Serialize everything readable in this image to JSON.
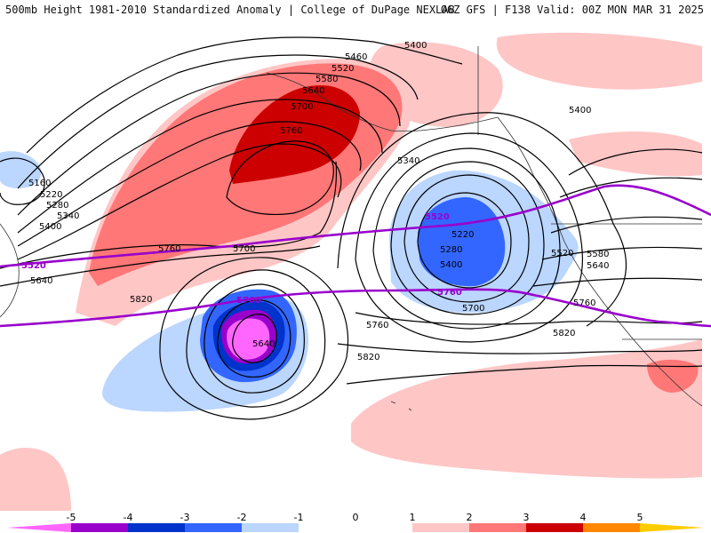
{
  "header": {
    "title_left": "500mb Height 1981-2010 Standardized Anomaly | College of DuPage NEXLAB",
    "title_right": "06Z GFS | F138 Valid: 00Z MON MAR 31 2025"
  },
  "colors": {
    "anom_neg5": "#ff66ff",
    "anom_neg4": "#9900cc",
    "anom_neg3": "#0033cc",
    "anom_neg2": "#3366ff",
    "anom_neg1": "#bbd6ff",
    "anom_pos1": "#ffc6c6",
    "anom_pos2": "#ff7777",
    "anom_pos3": "#cc0000",
    "anom_pos4": "#ff8800",
    "anom_pos5": "#ffcc00",
    "highlight_contour": "#9900cc"
  },
  "colorbar": {
    "ticks": [
      "-5",
      "-4",
      "-3",
      "-2",
      "-1",
      "0",
      "1",
      "2",
      "3",
      "4",
      "5"
    ]
  },
  "contour_labels": {
    "l5400_n": "5400",
    "l5460": "5460",
    "l5520_a": "5520",
    "l5580": "5580",
    "l5640_a": "5640",
    "l5700_a": "5700",
    "l5760_a": "5760",
    "l5400_ne": "5400",
    "l5340_low": "5340",
    "l5160": "5160",
    "l5220_w": "5220",
    "l5280_w": "5280",
    "l5340_w": "5340",
    "l5400_w": "5400",
    "l5640_w": "5640",
    "l5520_purple_w": "5520",
    "l5520_purple_e": "5520",
    "l5760_purple": "5760",
    "l5760_purple_b": "5760",
    "l5760_b": "5760",
    "l5700_b": "5700",
    "l5820_w": "5820",
    "l5640_cut": "5640",
    "l5760_c": "5760",
    "l5820_c": "5820",
    "l5220_low": "5220",
    "l5280_low": "5280",
    "l5400_low": "5400",
    "l5700_low": "5700",
    "l5520_e": "5520",
    "l5580_e": "5580",
    "l5640_e": "5640",
    "l5760_e": "5760",
    "l5820_e": "5820"
  }
}
